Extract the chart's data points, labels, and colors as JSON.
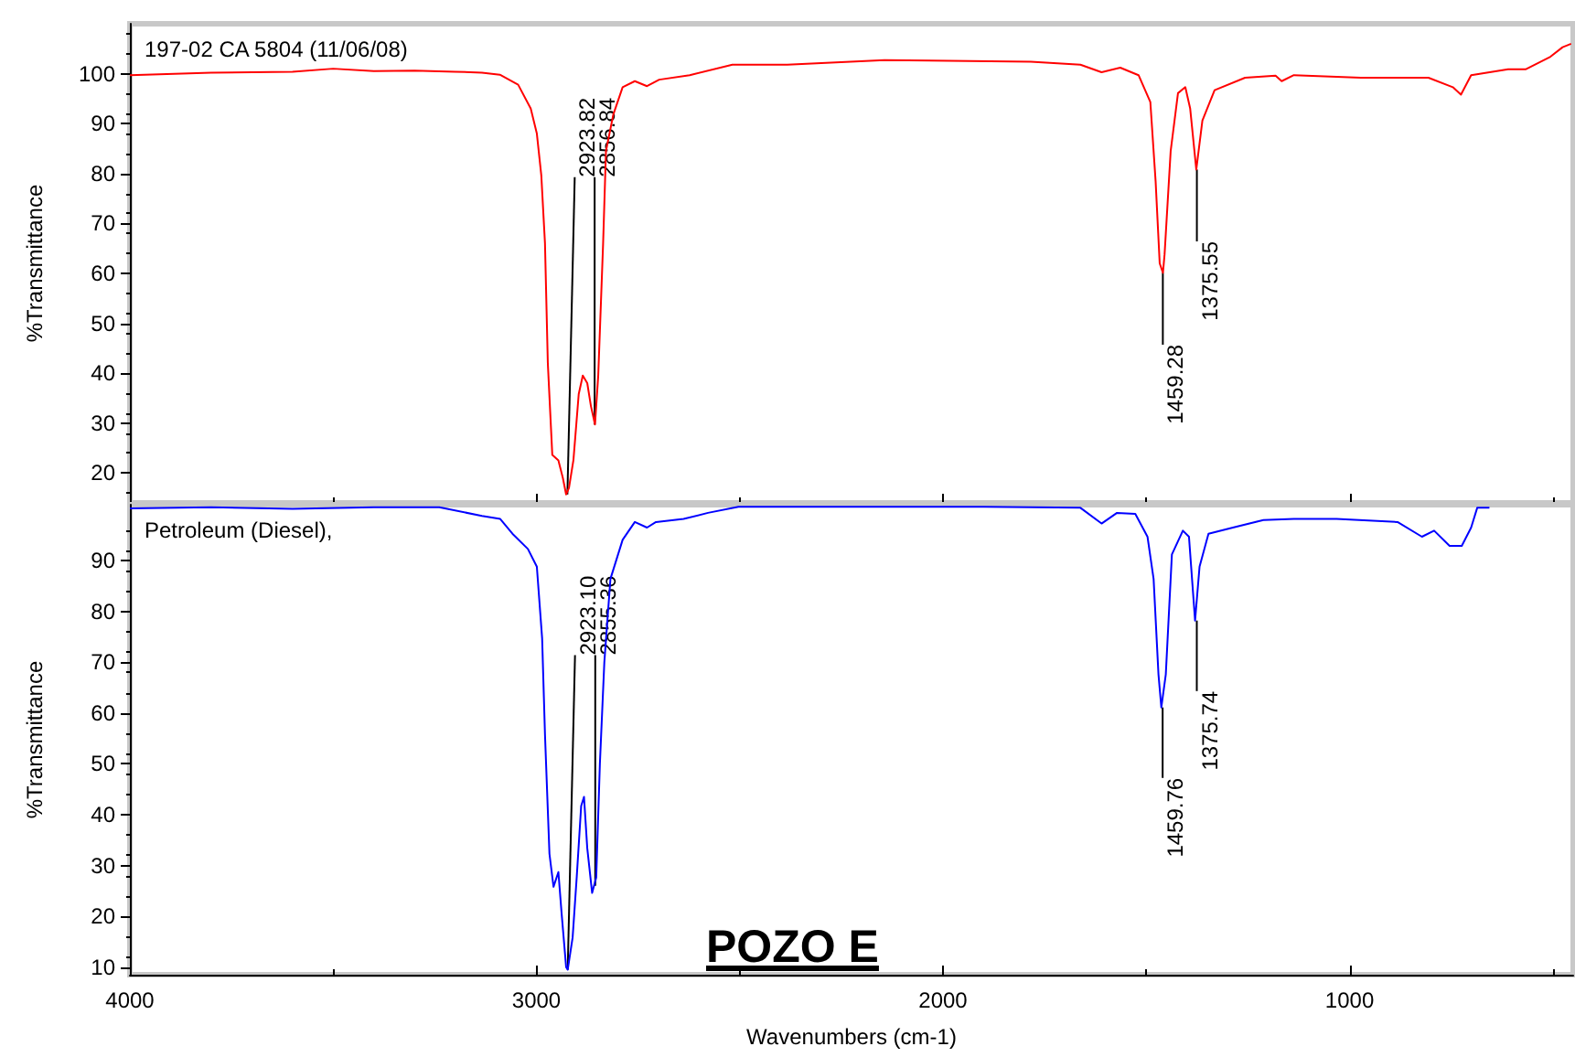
{
  "chart_data": [
    {
      "type": "line",
      "title": "197-02 CA 5804 (11/06/08)",
      "ylabel": "%Transmittance",
      "xlim": [
        4000,
        450
      ],
      "xticks": [
        4000,
        3000,
        2000,
        1000
      ],
      "ylim": [
        14,
        110
      ],
      "yticks": [
        20,
        30,
        40,
        50,
        60,
        70,
        80,
        90,
        100
      ],
      "tick_labels": "y",
      "marker": "none",
      "x": [
        4000,
        3800,
        3600,
        3500,
        3400,
        3300,
        3200,
        3134,
        3090,
        3045,
        3014,
        2999,
        2988,
        2979,
        2972,
        2961,
        2946,
        2935,
        2927,
        2920,
        2909,
        2896,
        2886,
        2875,
        2866,
        2856,
        2848,
        2836,
        2829,
        2811,
        2788,
        2758,
        2728,
        2698,
        2623,
        2518,
        2383,
        2144,
        1784,
        1662,
        1610,
        1564,
        1519,
        1490,
        1477,
        1467,
        1459,
        1455,
        1440,
        1422,
        1404,
        1392,
        1377,
        1362,
        1332,
        1257,
        1182,
        1167,
        1137,
        972,
        806,
        746,
        726,
        701,
        610,
        566,
        506,
        476,
        455
      ],
      "series": [
        {
          "color": "#ff0000",
          "values": [
            99.7,
            100.2,
            100.4,
            101,
            100.5,
            100.6,
            100.4,
            100.2,
            99.8,
            97.8,
            93,
            88,
            79.6,
            66,
            42,
            23.6,
            22.5,
            19,
            15.7,
            17,
            22.6,
            35.8,
            39.5,
            38,
            33.4,
            29.7,
            39.5,
            66,
            84.5,
            91.8,
            97.3,
            98.5,
            97.5,
            98.8,
            99.7,
            101.8,
            101.8,
            102.7,
            102.4,
            101.8,
            100.3,
            101.2,
            99.7,
            94.3,
            78.4,
            62,
            60.1,
            63.8,
            84.5,
            96.1,
            97.3,
            93,
            80.8,
            90.6,
            96.7,
            99.2,
            99.6,
            98.5,
            99.7,
            99.2,
            99.2,
            97.3,
            95.8,
            99.7,
            100.9,
            100.9,
            103.4,
            105.3,
            106
          ]
        }
      ],
      "annotations": [
        {
          "text": "2923.82",
          "x": 2923.82,
          "y": 15.7
        },
        {
          "text": "2856.84",
          "x": 2856.84,
          "y": 29.7
        },
        {
          "text": "1459.28",
          "x": 1459.28,
          "y": 60.1
        },
        {
          "text": "1375.55",
          "x": 1375.55,
          "y": 80.8
        }
      ]
    },
    {
      "type": "line",
      "title": "Petroleum (Diesel),",
      "xlabel": "Wavenumbers (cm-1)",
      "ylabel": "%Transmittance",
      "xlim": [
        4000,
        450
      ],
      "xticks": [
        4000,
        3000,
        2000,
        1000
      ],
      "ylim": [
        8.5,
        101
      ],
      "yticks": [
        10,
        20,
        30,
        40,
        50,
        60,
        70,
        80,
        90
      ],
      "marker": "none",
      "x": [
        4000,
        3800,
        3600,
        3400,
        3239,
        3134,
        3089,
        3059,
        3021,
        2999,
        2986,
        2979,
        2968,
        2958,
        2946,
        2938,
        2927,
        2923,
        2911,
        2901,
        2890,
        2883,
        2875,
        2863,
        2853,
        2844,
        2833,
        2818,
        2788,
        2758,
        2728,
        2706,
        2638,
        2578,
        2503,
        2200,
        1900,
        1662,
        1610,
        1572,
        1527,
        1497,
        1482,
        1470,
        1463,
        1452,
        1437,
        1410,
        1395,
        1380,
        1369,
        1347,
        1287,
        1212,
        1137,
        1032,
        882,
        822,
        792,
        754,
        724,
        701,
        686,
        656
      ],
      "series": [
        {
          "color": "#0000ff",
          "values": [
            100.3,
            100.5,
            100.2,
            100.5,
            100.5,
            98.8,
            98.2,
            95.3,
            92.3,
            88.8,
            74.7,
            55.8,
            32.3,
            25.8,
            28.7,
            20.5,
            10,
            9.5,
            15.8,
            27.6,
            41.7,
            43.5,
            33.4,
            24.6,
            27.6,
            49.9,
            70,
            86.4,
            94.1,
            97.6,
            96.5,
            97.6,
            98.2,
            99.4,
            100.6,
            100.6,
            100.6,
            100.4,
            97.3,
            99.4,
            99.2,
            94.7,
            86.4,
            67.6,
            61.1,
            67.6,
            91.2,
            95.9,
            94.7,
            78.2,
            88.8,
            95.3,
            96.5,
            98,
            98.2,
            98.2,
            97.6,
            94.7,
            95.9,
            92.9,
            92.9,
            96.5,
            100.4,
            100.4
          ]
        }
      ],
      "annotations": [
        {
          "text": "2923.10",
          "x": 2923.1,
          "y": 9.5
        },
        {
          "text": "2855.36",
          "x": 2855.36,
          "y": 26
        },
        {
          "text": "1459.76",
          "x": 1459.76,
          "y": 61.1
        },
        {
          "text": "1375.74",
          "x": 1375.74,
          "y": 78.2
        },
        "POZO E"
      ]
    }
  ]
}
